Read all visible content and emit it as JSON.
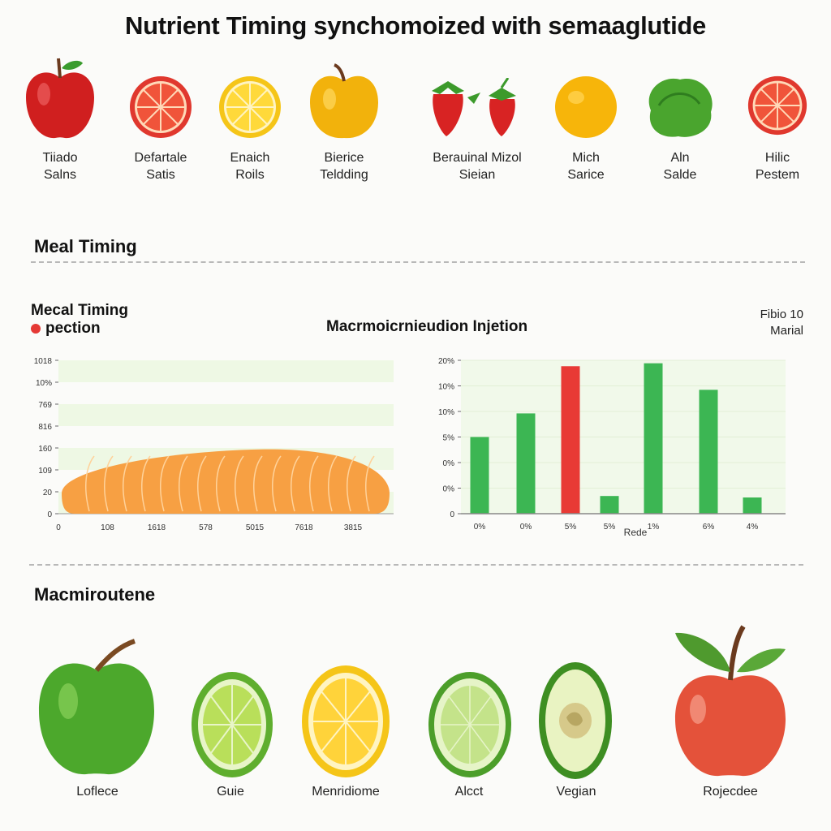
{
  "title": "Nutrient Timing synchomoized with   semaaglutide",
  "top_fruits": [
    {
      "icon": "red-apple-icon",
      "line1": "Tiiado",
      "line2": "Salns"
    },
    {
      "icon": "grapefruit-slice-icon",
      "line1": "Defartale",
      "line2": "Satis"
    },
    {
      "icon": "lemon-slice-icon",
      "line1": "Enaich",
      "line2": "Roils"
    },
    {
      "icon": "yellow-apple-icon",
      "line1": "Bierice",
      "line2": "Teldding"
    },
    {
      "icon": "strawberries-icon",
      "line1": "Berauinal Mizol",
      "line2": "Sieian"
    },
    {
      "icon": "orange-icon",
      "line1": "Mich",
      "line2": "Sarice"
    },
    {
      "icon": "lettuce-icon",
      "line1": "Aln",
      "line2": "Salde"
    },
    {
      "icon": "grapefruit-slice-icon",
      "line1": "Hilic",
      "line2": "Pestem"
    }
  ],
  "meal_timing_heading": "Meal Timing",
  "chart_section": {
    "left_heading_line1": "Mecal Timing",
    "left_heading_line2": "pection",
    "center_heading": "Macrmoicrnieudion Injetion",
    "right_note_line1": "Fibio 10",
    "right_note_line2": "Marial"
  },
  "chart_data": [
    {
      "type": "area",
      "y_tick_labels": [
        "0",
        "20",
        "109",
        "160",
        "816",
        "769",
        "10%",
        "1018"
      ],
      "x_tick_labels": [
        "0",
        "108",
        "1618",
        "578",
        "5015",
        "7618",
        "3815"
      ],
      "fill_color": "#f7a043",
      "grid": true
    },
    {
      "type": "bar",
      "y_tick_labels": [
        "0",
        "0%",
        "0%",
        "5%",
        "10%",
        "10%",
        "20%"
      ],
      "categories": [
        "0%",
        "0%",
        "5%",
        "5%",
        "1%",
        "6%",
        "4%"
      ],
      "values": [
        0.52,
        0.68,
        1.0,
        0.12,
        1.02,
        0.84,
        0.11
      ],
      "colors": [
        "#3cb653",
        "#3cb653",
        "#e83a35",
        "#3cb653",
        "#3cb653",
        "#3cb653",
        "#3cb653"
      ],
      "xlabel": "Rede",
      "grid": true
    }
  ],
  "macro_heading": "Macmiroutene",
  "bottom_fruits": [
    {
      "icon": "green-apple-icon",
      "label": "Loflece"
    },
    {
      "icon": "lime-slice-icon",
      "label": "Guie"
    },
    {
      "icon": "lemon-slice-icon",
      "label": "Menridiome"
    },
    {
      "icon": "cucumber-slice-icon",
      "label": "Alcct"
    },
    {
      "icon": "avocado-half-icon",
      "label": "Vegian"
    },
    {
      "icon": "red-apple-icon",
      "label": "Rojecdee"
    }
  ]
}
